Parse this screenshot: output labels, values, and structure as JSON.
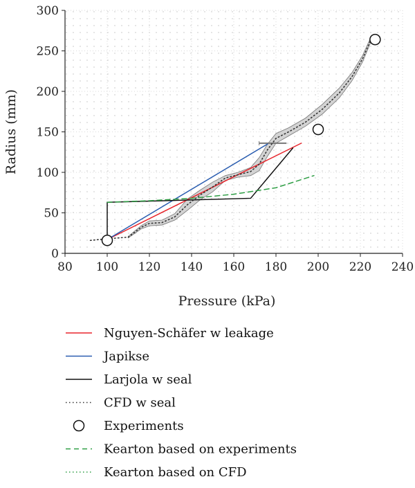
{
  "chart_data": {
    "type": "line",
    "xlabel": "Pressure (kPa)",
    "ylabel": "Radius (mm)",
    "xlim": [
      80,
      240
    ],
    "ylim": [
      0,
      300
    ],
    "xticks": [
      80,
      100,
      120,
      140,
      160,
      180,
      200,
      220,
      240
    ],
    "yticks": [
      0,
      50,
      100,
      150,
      200,
      250,
      300
    ],
    "grid": "dotted",
    "legend_position": "below",
    "series": [
      {
        "name": "Nguyen-Schäfer w leakage",
        "color": "#e8242b",
        "style": "solid",
        "x": [
          100,
          192
        ],
        "y": [
          17,
          136
        ]
      },
      {
        "name": "Japikse",
        "color": "#2a5db0",
        "style": "solid",
        "x": [
          100,
          176
        ],
        "y": [
          17,
          135
        ]
      },
      {
        "name": "Larjola w seal",
        "color": "#111111",
        "style": "solid",
        "x": [
          100,
          100,
          168,
          188,
          188
        ],
        "y": [
          17,
          63,
          68,
          130,
          130
        ]
      },
      {
        "name": "CFD w seal",
        "color": "#333333",
        "style": "dotted",
        "x": [
          92,
          100,
          110,
          116,
          120,
          126,
          132,
          138,
          144,
          150,
          156,
          162,
          168,
          172,
          176,
          180,
          186,
          194,
          202,
          210,
          216,
          221,
          225
        ],
        "y": [
          16,
          18,
          20,
          32,
          37,
          38,
          45,
          60,
          72,
          82,
          93,
          97,
          101,
          110,
          128,
          142,
          150,
          162,
          178,
          198,
          218,
          240,
          264
        ]
      },
      {
        "name": "Experiments",
        "color": "#111111",
        "style": "marker-circle",
        "x": [
          100,
          200,
          227
        ],
        "y": [
          16,
          153,
          264
        ]
      },
      {
        "name": "Kearton based on experiments",
        "color": "#2e9e44",
        "style": "dashed",
        "x": [
          100,
          120,
          140,
          160,
          180,
          198
        ],
        "y": [
          63,
          65,
          68,
          73,
          81,
          96
        ]
      },
      {
        "name": "Kearton based on CFD",
        "color": "#2e9e44",
        "style": "dotted",
        "x": [],
        "y": []
      }
    ],
    "band": {
      "name": "CFD w seal",
      "color": "#d3d3d3",
      "x": [
        110,
        116,
        120,
        126,
        132,
        138,
        144,
        150,
        156,
        162,
        168,
        172,
        176,
        180,
        186,
        194,
        202,
        210,
        216,
        221,
        225
      ],
      "upper": [
        21,
        34,
        40,
        41,
        49,
        67,
        78,
        88,
        96,
        100,
        106,
        118,
        135,
        148,
        155,
        167,
        184,
        204,
        223,
        244,
        267
      ],
      "lower": [
        19,
        30,
        34,
        35,
        41,
        53,
        66,
        76,
        90,
        94,
        96,
        102,
        120,
        136,
        145,
        157,
        172,
        192,
        213,
        236,
        261
      ]
    },
    "annotations": [
      {
        "type": "horizontal-bar",
        "x": [
          172,
          185
        ],
        "y": 136,
        "color": "#777777"
      }
    ]
  }
}
